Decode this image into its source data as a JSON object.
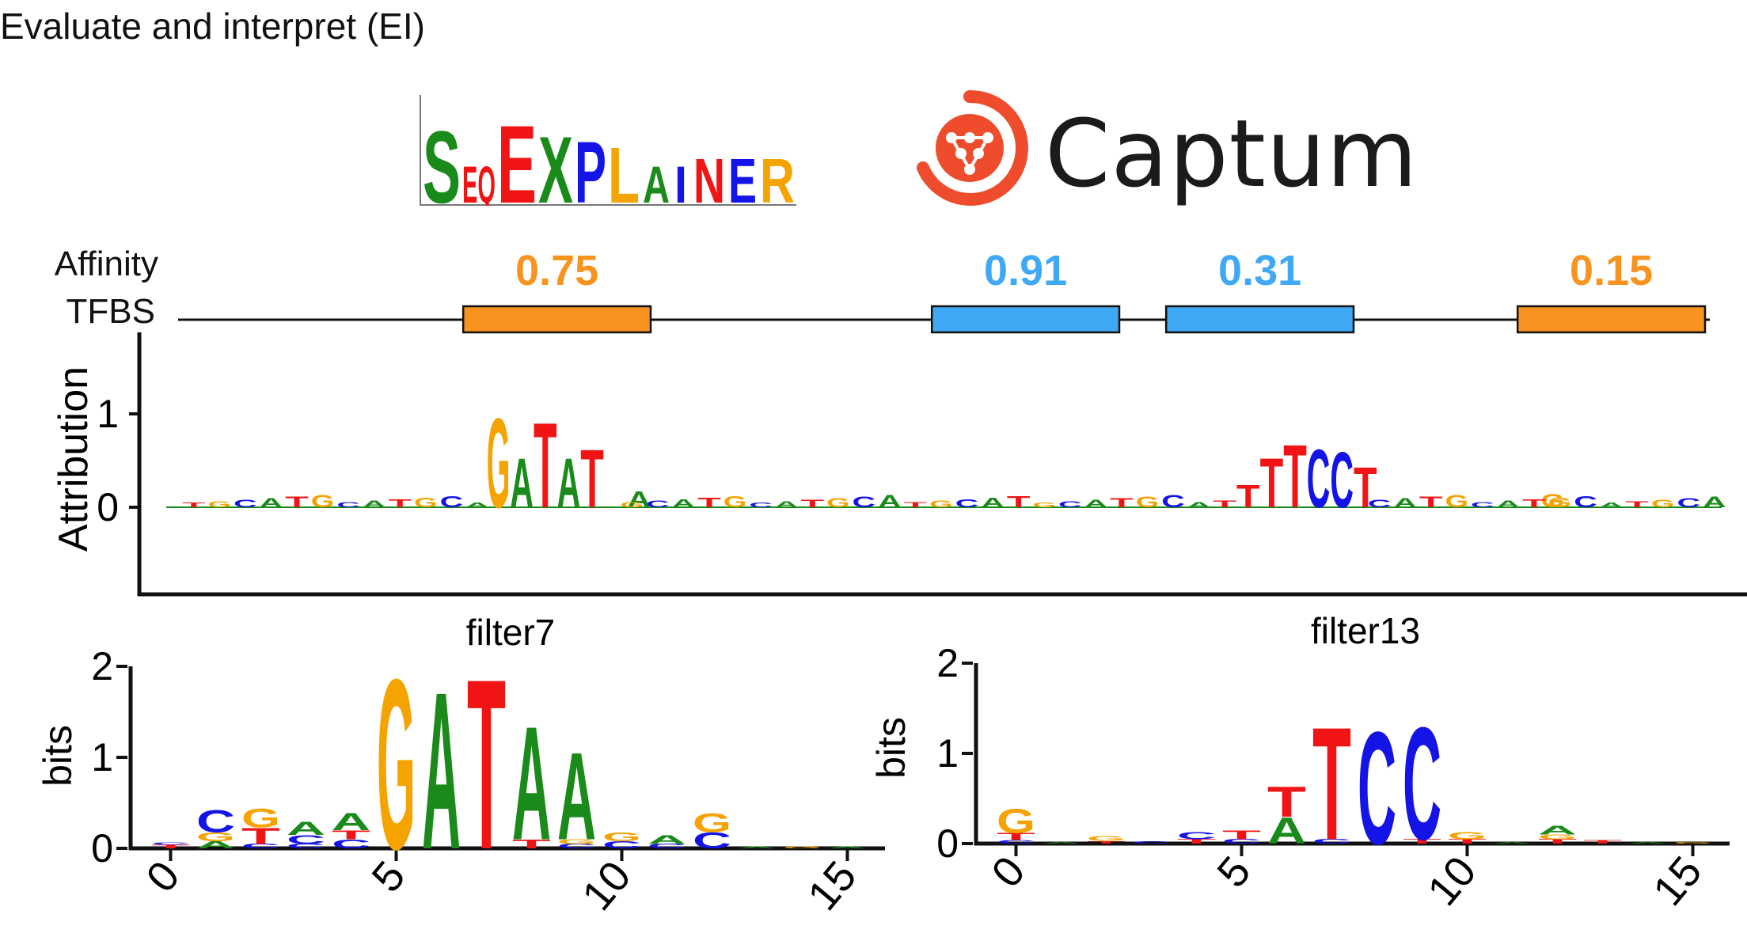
{
  "title": "Evaluate and interpret (EI)",
  "logos": {
    "seqexplainer": {
      "letters": [
        "S",
        "EQ",
        "E",
        "X",
        "P",
        "L",
        "A",
        "I",
        "N",
        "E",
        "R"
      ]
    },
    "captum": {
      "text": "Captum"
    }
  },
  "colors": {
    "A": "#1a8a1a",
    "C": "#1414e6",
    "G": "#f5a300",
    "T": "#f01414",
    "orange_site": "#f7931e",
    "blue_site": "#3fa9f5",
    "track": "#111111"
  },
  "track": {
    "row_labels": [
      "Affinity",
      "TFBS"
    ],
    "sites": [
      {
        "affinity": "0.75",
        "color": "orange",
        "start": 6.0,
        "end": 10.0
      },
      {
        "affinity": "0.91",
        "color": "blue",
        "start": 16.0,
        "end": 20.0
      },
      {
        "affinity": "0.31",
        "color": "blue",
        "start": 21.0,
        "end": 25.0
      },
      {
        "affinity": "0.15",
        "color": "orange",
        "start": 28.5,
        "end": 32.5
      }
    ]
  },
  "chart_data": [
    {
      "type": "sequence-logo",
      "ylabel": "Attribution",
      "yticks": [
        "1",
        "0"
      ],
      "ylim": [
        -1,
        2
      ],
      "major_letters": [
        {
          "pos": 6.5,
          "letter": "G",
          "height": 1.0
        },
        {
          "pos": 7.0,
          "letter": "A",
          "height": 0.55
        },
        {
          "pos": 7.5,
          "letter": "T",
          "height": 0.95
        },
        {
          "pos": 8.0,
          "letter": "A",
          "height": 0.55
        },
        {
          "pos": 8.5,
          "letter": "T",
          "height": 0.65
        },
        {
          "pos": 9.5,
          "letter": "A",
          "height": 0.18
        },
        {
          "pos": 22.5,
          "letter": "T",
          "height": 0.25
        },
        {
          "pos": 23.0,
          "letter": "T",
          "height": 0.55
        },
        {
          "pos": 23.5,
          "letter": "T",
          "height": 0.7
        },
        {
          "pos": 24.0,
          "letter": "C",
          "height": 0.65
        },
        {
          "pos": 24.5,
          "letter": "C",
          "height": 0.62
        },
        {
          "pos": 25.0,
          "letter": "T",
          "height": 0.45
        },
        {
          "pos": 29.0,
          "letter": "G",
          "height": 0.15
        }
      ]
    },
    {
      "type": "sequence-logo",
      "title": "filter7",
      "ylabel": "bits",
      "yticks": [
        "2",
        "1",
        "0"
      ],
      "xticks": [
        "0",
        "5",
        "10",
        "15"
      ],
      "ylim": [
        0,
        2
      ],
      "columns": [
        {
          "pos": 0,
          "stack": [
            [
              "T",
              0.04
            ],
            [
              "C",
              0.03
            ]
          ]
        },
        {
          "pos": 1,
          "stack": [
            [
              "A",
              0.08
            ],
            [
              "G",
              0.1
            ],
            [
              "C",
              0.25
            ]
          ]
        },
        {
          "pos": 2,
          "stack": [
            [
              "C",
              0.05
            ],
            [
              "T",
              0.18
            ],
            [
              "G",
              0.22
            ]
          ]
        },
        {
          "pos": 3,
          "stack": [
            [
              "C",
              0.05
            ],
            [
              "C",
              0.1
            ],
            [
              "A",
              0.15
            ]
          ]
        },
        {
          "pos": 4,
          "stack": [
            [
              "C",
              0.1
            ],
            [
              "T",
              0.1
            ],
            [
              "A",
              0.2
            ]
          ]
        },
        {
          "pos": 5,
          "stack": [
            [
              "G",
              1.95
            ]
          ]
        },
        {
          "pos": 6,
          "stack": [
            [
              "A",
              1.8
            ]
          ]
        },
        {
          "pos": 7,
          "stack": [
            [
              "T",
              1.95
            ]
          ]
        },
        {
          "pos": 8,
          "stack": [
            [
              "T",
              0.1
            ],
            [
              "A",
              1.3
            ]
          ]
        },
        {
          "pos": 9,
          "stack": [
            [
              "C",
              0.05
            ],
            [
              "G",
              0.05
            ],
            [
              "A",
              1.0
            ]
          ]
        },
        {
          "pos": 10,
          "stack": [
            [
              "C",
              0.08
            ],
            [
              "G",
              0.1
            ]
          ]
        },
        {
          "pos": 11,
          "stack": [
            [
              "C",
              0.05
            ],
            [
              "A",
              0.1
            ]
          ]
        },
        {
          "pos": 12,
          "stack": [
            [
              "C",
              0.18
            ],
            [
              "G",
              0.22
            ]
          ]
        },
        {
          "pos": 13,
          "stack": [
            [
              "A",
              0.02
            ]
          ]
        },
        {
          "pos": 14,
          "stack": [
            [
              "G",
              0.02
            ]
          ]
        },
        {
          "pos": 15,
          "stack": [
            [
              "A",
              0.02
            ]
          ]
        }
      ]
    },
    {
      "type": "sequence-logo",
      "title": "filter13",
      "ylabel": "bits",
      "yticks": [
        "2",
        "1",
        "0"
      ],
      "xticks": [
        "0",
        "5",
        "10",
        "15"
      ],
      "ylim": [
        0,
        2
      ],
      "columns": [
        {
          "pos": 0,
          "stack": [
            [
              "C",
              0.04
            ],
            [
              "T",
              0.08
            ],
            [
              "G",
              0.28
            ]
          ]
        },
        {
          "pos": 1,
          "stack": [
            [
              "A",
              0.02
            ]
          ]
        },
        {
          "pos": 2,
          "stack": [
            [
              "T",
              0.03
            ],
            [
              "G",
              0.05
            ]
          ]
        },
        {
          "pos": 3,
          "stack": [
            [
              "C",
              0.03
            ]
          ]
        },
        {
          "pos": 4,
          "stack": [
            [
              "T",
              0.05
            ],
            [
              "C",
              0.08
            ]
          ]
        },
        {
          "pos": 5,
          "stack": [
            [
              "C",
              0.05
            ],
            [
              "T",
              0.1
            ]
          ]
        },
        {
          "pos": 6,
          "stack": [
            [
              "A",
              0.3
            ],
            [
              "T",
              0.35
            ]
          ]
        },
        {
          "pos": 7,
          "stack": [
            [
              "C",
              0.05
            ],
            [
              "T",
              1.3
            ]
          ]
        },
        {
          "pos": 8,
          "stack": [
            [
              "C",
              1.3
            ]
          ]
        },
        {
          "pos": 9,
          "stack": [
            [
              "T",
              0.05
            ],
            [
              "C",
              1.3
            ]
          ]
        },
        {
          "pos": 10,
          "stack": [
            [
              "T",
              0.05
            ],
            [
              "G",
              0.08
            ]
          ]
        },
        {
          "pos": 11,
          "stack": [
            [
              "A",
              0.02
            ]
          ]
        },
        {
          "pos": 12,
          "stack": [
            [
              "T",
              0.05
            ],
            [
              "G",
              0.05
            ],
            [
              "A",
              0.1
            ]
          ]
        },
        {
          "pos": 13,
          "stack": [
            [
              "T",
              0.04
            ]
          ]
        },
        {
          "pos": 14,
          "stack": [
            [
              "A",
              0.02
            ]
          ]
        },
        {
          "pos": 15,
          "stack": [
            [
              "G",
              0.02
            ]
          ]
        }
      ]
    }
  ]
}
